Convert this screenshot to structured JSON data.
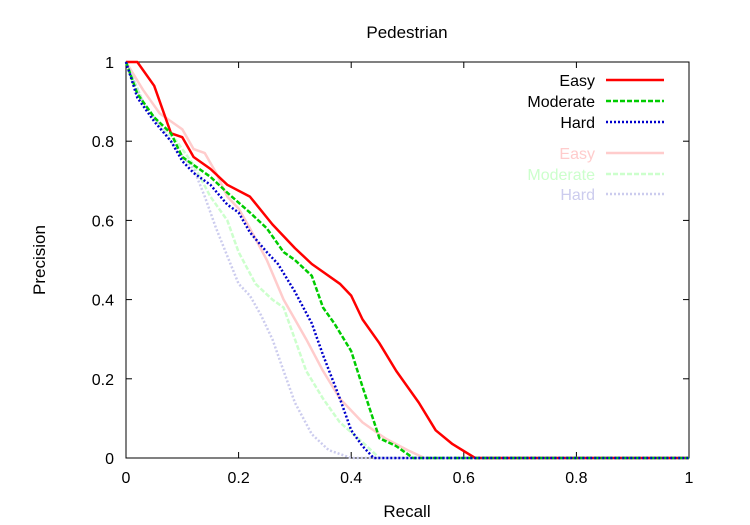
{
  "chart_data": {
    "type": "line",
    "title": "Pedestrian",
    "xlabel": "Recall",
    "ylabel": "Precision",
    "xlim": [
      0,
      1
    ],
    "ylim": [
      0,
      1
    ],
    "xticks": [
      0,
      0.2,
      0.4,
      0.6,
      0.8,
      1
    ],
    "xtick_labels": [
      "0",
      "0.2",
      "0.4",
      "0.6",
      "0.8",
      "1"
    ],
    "yticks": [
      0,
      0.2,
      0.4,
      0.6,
      0.8,
      1
    ],
    "ytick_labels": [
      "0",
      "0.2",
      "0.4",
      "0.6",
      "0.8",
      "1"
    ],
    "grid": false,
    "legend_position": "top-right",
    "series": [
      {
        "name": "Easy",
        "color": "#ff0000",
        "style": "solid",
        "x": [
          0,
          0.02,
          0.05,
          0.08,
          0.1,
          0.12,
          0.15,
          0.18,
          0.22,
          0.26,
          0.3,
          0.33,
          0.35,
          0.38,
          0.4,
          0.42,
          0.45,
          0.48,
          0.52,
          0.55,
          0.58,
          0.62,
          0.7,
          0.8,
          0.9,
          1.0
        ],
        "y": [
          1.0,
          1.0,
          0.94,
          0.82,
          0.81,
          0.76,
          0.73,
          0.69,
          0.66,
          0.59,
          0.53,
          0.49,
          0.47,
          0.44,
          0.41,
          0.35,
          0.29,
          0.22,
          0.14,
          0.07,
          0.035,
          0.0,
          0.0,
          0.0,
          0.0,
          0.0
        ]
      },
      {
        "name": "Moderate",
        "color": "#00cc00",
        "style": "dashed",
        "x": [
          0,
          0.02,
          0.05,
          0.08,
          0.1,
          0.12,
          0.15,
          0.18,
          0.22,
          0.25,
          0.28,
          0.3,
          0.33,
          0.35,
          0.37,
          0.4,
          0.42,
          0.45,
          0.48,
          0.51,
          0.6,
          0.7,
          0.8,
          0.9,
          1.0
        ],
        "y": [
          1.0,
          0.92,
          0.86,
          0.82,
          0.76,
          0.74,
          0.71,
          0.67,
          0.62,
          0.58,
          0.52,
          0.5,
          0.46,
          0.38,
          0.34,
          0.27,
          0.18,
          0.05,
          0.03,
          0.0,
          0.0,
          0.0,
          0.0,
          0.0,
          0.0
        ]
      },
      {
        "name": "Hard",
        "color": "#0000cc",
        "style": "dotted",
        "x": [
          0,
          0.02,
          0.05,
          0.08,
          0.1,
          0.12,
          0.15,
          0.18,
          0.2,
          0.22,
          0.25,
          0.27,
          0.3,
          0.33,
          0.35,
          0.38,
          0.4,
          0.42,
          0.44,
          0.5,
          0.6,
          0.7,
          0.8,
          0.9,
          1.0
        ],
        "y": [
          1.0,
          0.91,
          0.85,
          0.8,
          0.75,
          0.72,
          0.69,
          0.64,
          0.62,
          0.57,
          0.52,
          0.49,
          0.42,
          0.34,
          0.26,
          0.15,
          0.07,
          0.03,
          0.0,
          0.0,
          0.0,
          0.0,
          0.0,
          0.0,
          0.0
        ]
      },
      {
        "name": "Easy",
        "color": "#ffcccc",
        "style": "solid",
        "x": [
          0,
          0.03,
          0.06,
          0.08,
          0.1,
          0.12,
          0.14,
          0.16,
          0.18,
          0.2,
          0.22,
          0.25,
          0.28,
          0.3,
          0.32,
          0.35,
          0.38,
          0.42,
          0.46,
          0.5,
          0.53,
          0.6,
          0.7,
          0.8,
          0.9,
          1.0
        ],
        "y": [
          1.0,
          0.93,
          0.87,
          0.85,
          0.83,
          0.78,
          0.77,
          0.72,
          0.66,
          0.63,
          0.58,
          0.5,
          0.4,
          0.35,
          0.3,
          0.22,
          0.15,
          0.09,
          0.05,
          0.02,
          0.0,
          0.0,
          0.0,
          0.0,
          0.0,
          0.0
        ]
      },
      {
        "name": "Moderate",
        "color": "#ccffcc",
        "style": "dashed",
        "x": [
          0,
          0.03,
          0.06,
          0.09,
          0.12,
          0.15,
          0.18,
          0.2,
          0.23,
          0.26,
          0.28,
          0.3,
          0.32,
          0.35,
          0.38,
          0.42,
          0.45,
          0.5,
          0.6,
          0.7,
          0.8,
          0.9,
          1.0
        ],
        "y": [
          1.0,
          0.9,
          0.84,
          0.8,
          0.74,
          0.66,
          0.6,
          0.52,
          0.44,
          0.4,
          0.38,
          0.3,
          0.22,
          0.15,
          0.09,
          0.04,
          0.0,
          0.0,
          0.0,
          0.0,
          0.0,
          0.0,
          0.0
        ]
      },
      {
        "name": "Hard",
        "color": "#ccccee",
        "style": "dotted",
        "x": [
          0,
          0.03,
          0.06,
          0.09,
          0.12,
          0.14,
          0.16,
          0.18,
          0.2,
          0.22,
          0.24,
          0.26,
          0.28,
          0.3,
          0.33,
          0.36,
          0.4,
          0.5,
          0.6,
          0.7,
          0.8,
          0.9,
          1.0
        ],
        "y": [
          1.0,
          0.9,
          0.84,
          0.78,
          0.73,
          0.66,
          0.58,
          0.51,
          0.44,
          0.41,
          0.36,
          0.3,
          0.22,
          0.14,
          0.06,
          0.02,
          0.0,
          0.0,
          0.0,
          0.0,
          0.0,
          0.0,
          0.0
        ]
      }
    ]
  }
}
